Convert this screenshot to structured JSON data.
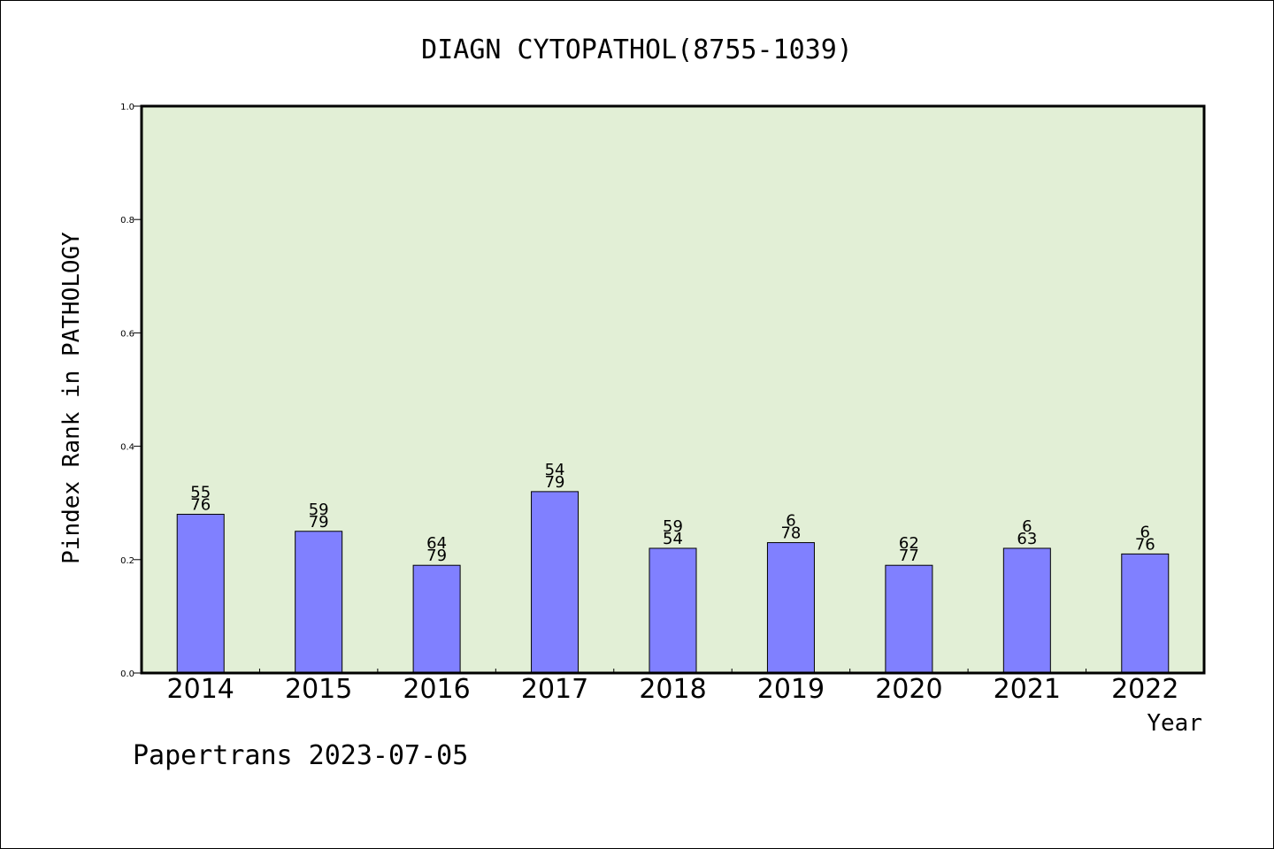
{
  "chart_data": {
    "type": "bar",
    "title": "DIAGN CYTOPATHOL(8755-1039)",
    "xlabel": "Year",
    "ylabel": "Pindex Rank in PATHOLOGY",
    "ylim": [
      0.0,
      1.0
    ],
    "yticks": [
      "0.0",
      "0.2",
      "0.4",
      "0.6",
      "0.8",
      "1.0"
    ],
    "categories": [
      "2014",
      "2015",
      "2016",
      "2017",
      "2018",
      "2019",
      "2020",
      "2021",
      "2022"
    ],
    "values": [
      0.28,
      0.25,
      0.19,
      0.32,
      0.22,
      0.23,
      0.19,
      0.22,
      0.21
    ],
    "labels": [
      [
        "55",
        "76"
      ],
      [
        "59",
        "79"
      ],
      [
        "64",
        "79"
      ],
      [
        "54",
        "79"
      ],
      [
        "59",
        "54"
      ],
      [
        "6",
        "78"
      ],
      [
        "62",
        "77"
      ],
      [
        "6",
        "63"
      ],
      [
        "6",
        "76"
      ]
    ],
    "grid": false,
    "colors": {
      "bar": "#8080ff",
      "plot_bg": "#e2efd6",
      "axis": "#000000"
    }
  },
  "footer": "Papertrans 2023-07-05"
}
